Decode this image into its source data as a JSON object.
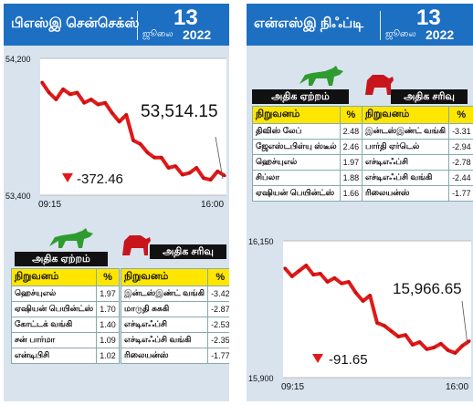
{
  "colors": {
    "header_bg": "#1d6fc2",
    "panel_bg": "#d8e3ee",
    "line": "#e01a1a",
    "down_arrow": "#e01a1a",
    "gainers_icon": "#2e9b2e",
    "losers_icon": "#c8151b",
    "table_header_bg": "#ffe600"
  },
  "sensex": {
    "title": "பிஎஸ்இ சென்செக்ஸ்",
    "date_day": "13",
    "date_month": "ஜூலை",
    "date_year": "2022",
    "close_label": "53,514.15",
    "change_label": "-372.46",
    "gainers_title": "அதிக ஏற்றம்",
    "losers_title": "அதிக சரிவு",
    "col_company": "நிறுவனம்",
    "col_pct": "%",
    "gainers": [
      {
        "name": "ஹெச்யுஎல்",
        "pct": "1.97"
      },
      {
        "name": "ஏஷியன் பெயின்ட்ஸ்",
        "pct": "1.70"
      },
      {
        "name": "கோட்டக் வங்கி",
        "pct": "1.40"
      },
      {
        "name": "சன் பார்மா",
        "pct": "1.09"
      },
      {
        "name": "என்டிபிசி",
        "pct": "1.02"
      }
    ],
    "losers": [
      {
        "name": "இன்டஸ்இண்ட் வங்கி",
        "pct": "-3.42"
      },
      {
        "name": "மாருதி சுசுகி",
        "pct": "-2.87"
      },
      {
        "name": "எச்டிஎஃப்சி",
        "pct": "-2.53"
      },
      {
        "name": "எச்டிஎஃப்சி வங்கி",
        "pct": "-2.35"
      },
      {
        "name": "ரிலையன்ஸ்",
        "pct": "-1.77"
      }
    ]
  },
  "nifty": {
    "title": "என்எஸ்இ நிஃப்டி",
    "date_day": "13",
    "date_month": "ஜூலை",
    "date_year": "2022",
    "close_label": "15,966.65",
    "change_label": "-91.65",
    "gainers_title": "அதிக ஏற்றம்",
    "losers_title": "அதிக சரிவு",
    "col_company": "நிறுவனம்",
    "col_pct": "%",
    "gainers": [
      {
        "name": "திவிஸ் லேப்",
        "pct": "2.48"
      },
      {
        "name": "ஜேஎஸ்டபிள்யு ஸ்டீல்",
        "pct": "2.46"
      },
      {
        "name": "ஹெச்யுஎல்",
        "pct": "1.97"
      },
      {
        "name": "சிப்லா",
        "pct": "1.88"
      },
      {
        "name": "ஏஷியன் பெயின்ட்ஸ்",
        "pct": "1.66"
      }
    ],
    "losers": [
      {
        "name": "இன்டஸ்இண்ட் வங்கி",
        "pct": "-3.31"
      },
      {
        "name": "பார்தி ஏர்டெல்",
        "pct": "-2.94"
      },
      {
        "name": "எச்டிஎஃப்சி",
        "pct": "-2.78"
      },
      {
        "name": "எச்டிஎஃப்சி வங்கி",
        "pct": "-2.44"
      },
      {
        "name": "ரிலையன்ஸ்",
        "pct": "-1.77"
      }
    ]
  },
  "chart_data": [
    {
      "type": "line",
      "title": "பிஎஸ்இ சென்செக்ஸ்",
      "xlabel": "",
      "ylabel": "",
      "x_ticks": [
        "09:15",
        "16:00"
      ],
      "y_ticks": [
        "54,200",
        "53,400"
      ],
      "ylim": [
        53400,
        54200
      ],
      "grid": false,
      "series": [
        {
          "x": [
            "09:15",
            "09:30",
            "09:45",
            "10:00",
            "10:15",
            "10:30",
            "10:45",
            "11:00",
            "11:15",
            "11:30",
            "11:45",
            "12:00",
            "12:15",
            "12:30",
            "12:45",
            "13:00",
            "13:15",
            "13:30",
            "13:45",
            "14:00",
            "14:15",
            "14:30",
            "14:45",
            "15:00",
            "15:15",
            "15:30",
            "16:00"
          ],
          "values": [
            54060,
            54000,
            53960,
            54020,
            53990,
            54000,
            53940,
            53960,
            53930,
            53940,
            53880,
            53830,
            53870,
            53720,
            53700,
            53650,
            53620,
            53620,
            53560,
            53570,
            53520,
            53530,
            53560,
            53500,
            53490,
            53540,
            53514
          ]
        }
      ],
      "annotations": [
        "53,514.15",
        "-372.46"
      ]
    },
    {
      "type": "line",
      "title": "என்எஸ்இ நிஃப்டி",
      "xlabel": "",
      "ylabel": "",
      "x_ticks": [
        "09:15",
        "16:00"
      ],
      "y_ticks": [
        "16,150",
        "15,900"
      ],
      "ylim": [
        15900,
        16150
      ],
      "grid": false,
      "series": [
        {
          "x": [
            "09:15",
            "09:30",
            "09:45",
            "10:00",
            "10:15",
            "10:30",
            "10:45",
            "11:00",
            "11:15",
            "11:30",
            "11:45",
            "12:00",
            "12:15",
            "12:30",
            "12:45",
            "13:00",
            "13:15",
            "13:30",
            "13:45",
            "14:00",
            "14:15",
            "14:30",
            "14:45",
            "15:00",
            "15:15",
            "15:30",
            "16:00"
          ],
          "values": [
            16100,
            16085,
            16095,
            16105,
            16088,
            16090,
            16075,
            16082,
            16072,
            16075,
            16055,
            16040,
            16050,
            16000,
            15995,
            15985,
            15975,
            15978,
            15960,
            15965,
            15952,
            15955,
            15962,
            15950,
            15945,
            15958,
            15967
          ]
        }
      ],
      "annotations": [
        "15,966.65",
        "-91.65"
      ]
    }
  ]
}
